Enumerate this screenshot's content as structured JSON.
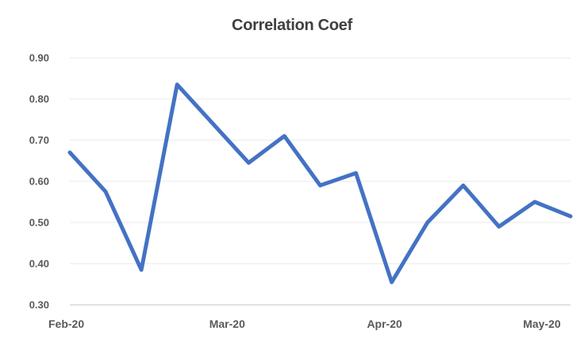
{
  "chart_data": {
    "type": "line",
    "title": "Correlation Coef",
    "series": [
      {
        "name": "Correlation Coef",
        "values": [
          0.67,
          0.575,
          0.385,
          0.835,
          0.74,
          0.645,
          0.71,
          0.59,
          0.62,
          0.355,
          0.5,
          0.59,
          0.49,
          0.55,
          0.515
        ]
      }
    ],
    "x_tick_labels": [
      "Feb-20",
      "Mar-20",
      "Apr-20",
      "May-20"
    ],
    "x_tick_positions": [
      0,
      4.4,
      8.8,
      13.2
    ],
    "y_ticks": [
      "0.90",
      "0.80",
      "0.70",
      "0.60",
      "0.50",
      "0.40",
      "0.30"
    ],
    "y_tick_values": [
      0.9,
      0.8,
      0.7,
      0.6,
      0.5,
      0.4,
      0.3
    ],
    "ylim": [
      0.3,
      0.9
    ],
    "grid": "horizontal",
    "legend": "none",
    "colors": {
      "line": "#4472C4",
      "gridline": "#E9E9E9",
      "axis_line": "#C3C3C3",
      "title_text": "#404040",
      "tick_text": "#595959",
      "background": "#FFFFFF"
    }
  }
}
